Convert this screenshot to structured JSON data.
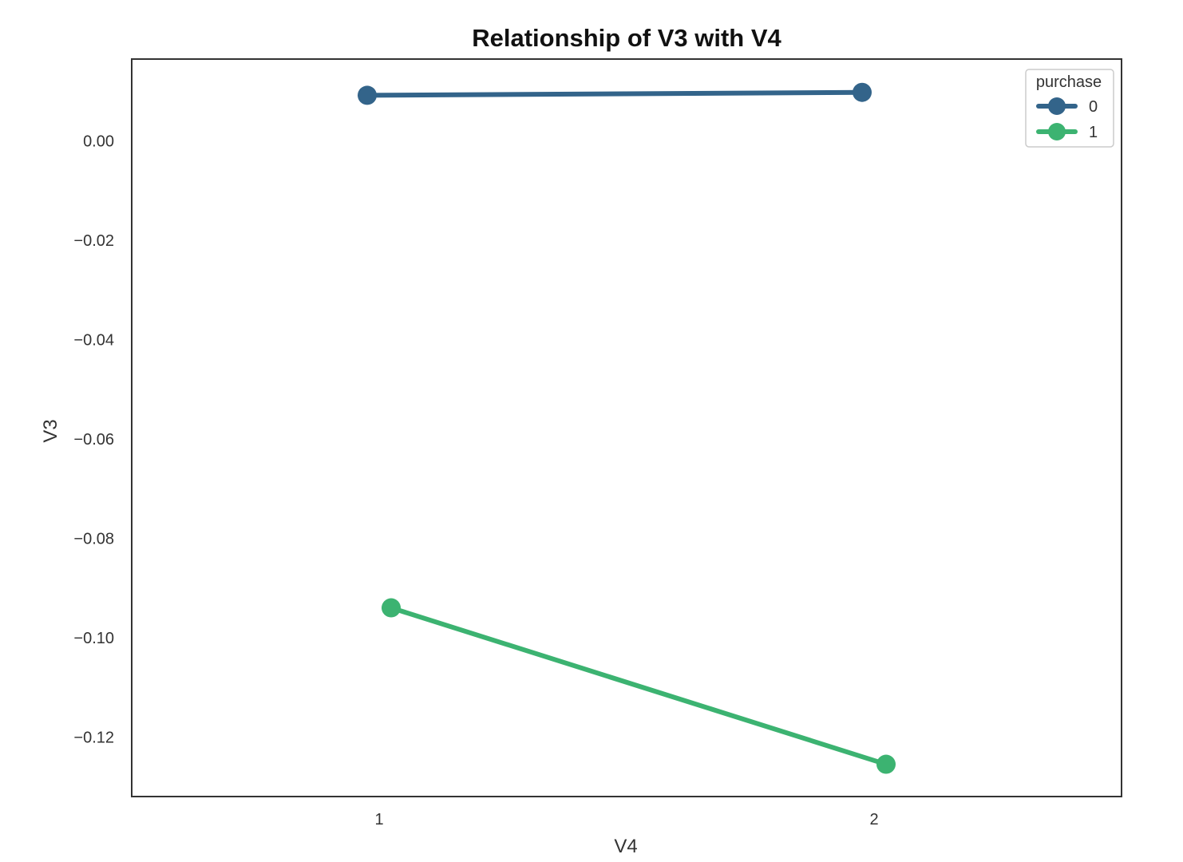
{
  "chart_data": {
    "type": "line",
    "title": "Relationship of V3 with V4",
    "xlabel": "V4",
    "ylabel": "V3",
    "categories": [
      "1",
      "2"
    ],
    "yticks": [
      0.0,
      -0.02,
      -0.04,
      -0.06,
      -0.08,
      -0.1,
      -0.12
    ],
    "ytick_labels": [
      "0.00",
      "−0.02",
      "−0.04",
      "−0.06",
      "−0.08",
      "−0.10",
      "−0.12"
    ],
    "ylim": [
      -0.132,
      0.0165
    ],
    "grid": false,
    "legend": {
      "title": "purchase",
      "placement": "top-right"
    },
    "series": [
      {
        "name": "0",
        "color": "#33648a",
        "values": [
          0.0092,
          0.0098
        ]
      },
      {
        "name": "1",
        "color": "#3cb371",
        "values": [
          -0.094,
          -0.1255
        ]
      }
    ]
  }
}
